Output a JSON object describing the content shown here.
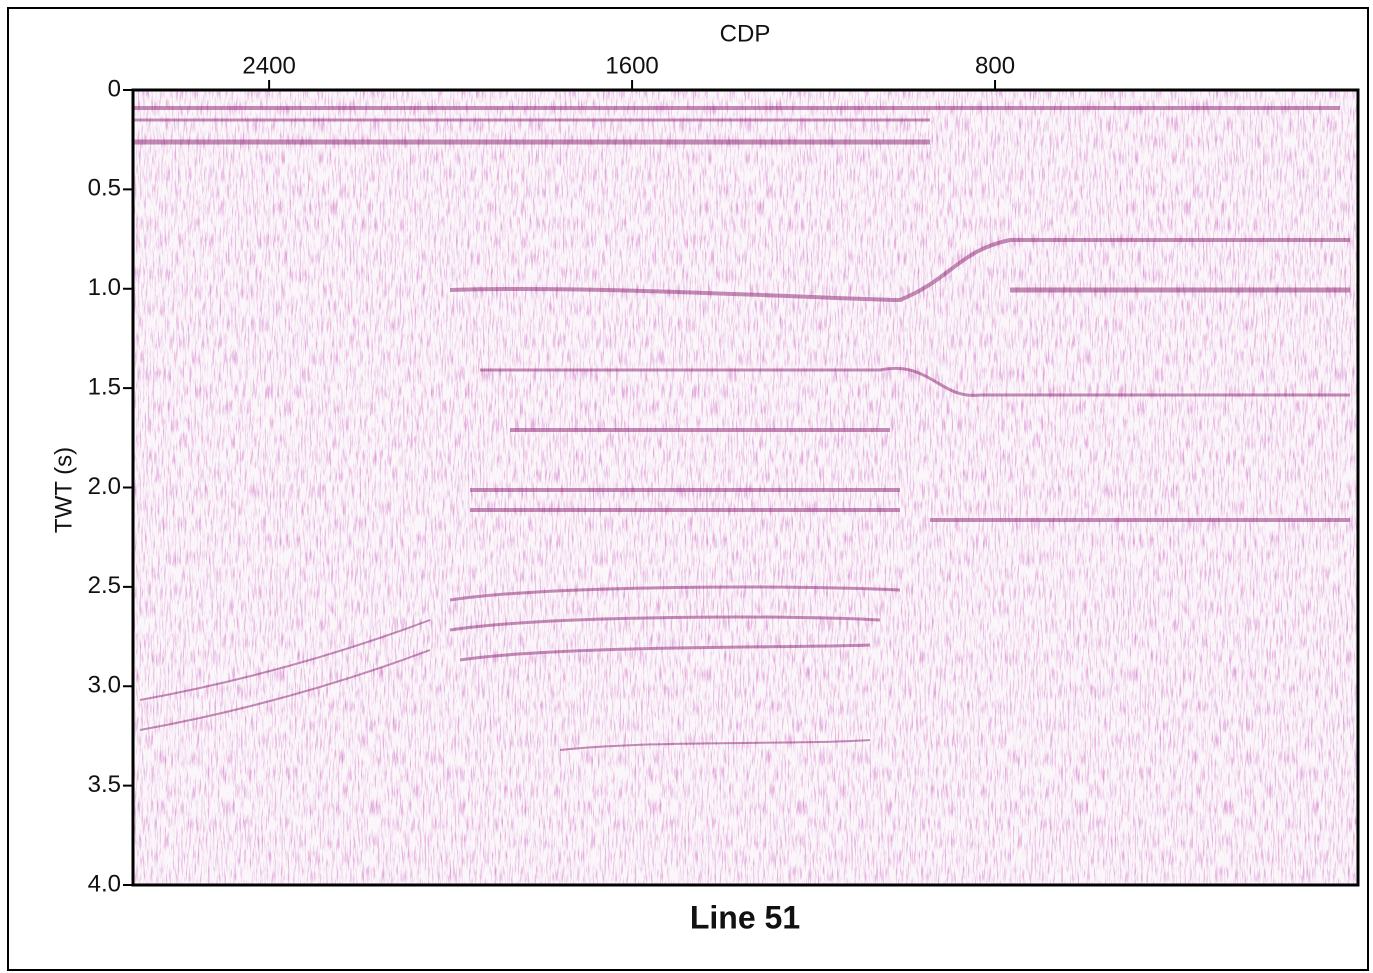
{
  "chart_data": {
    "type": "seismic",
    "title": "Line 51",
    "xlabel": "CDP",
    "ylabel": "TWT (s)",
    "xlim": [
      2700,
      0
    ],
    "xticks": [
      2400,
      1600,
      800
    ],
    "ylim": [
      0,
      4
    ],
    "yticks": [
      0,
      0.5,
      {
        "value": 1,
        "label": "1.0"
      },
      1.5,
      {
        "value": 2,
        "label": "2.0"
      },
      2.5,
      {
        "value": 3,
        "label": "3.0"
      },
      3.5,
      {
        "value": 4,
        "label": "4.0"
      }
    ]
  }
}
